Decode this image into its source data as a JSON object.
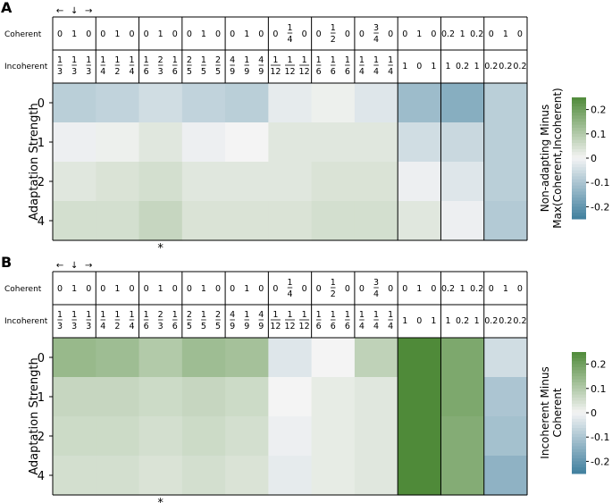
{
  "colors": {
    "negative": "#3f7f9e",
    "neutral": "#f4f4f4",
    "positive": "#4f8a39",
    "grid": "#000000"
  },
  "panels": [
    {
      "letter": "A",
      "arrows": [
        "←",
        "↓",
        "→"
      ],
      "star": "*",
      "row_labels": {
        "coherent": "Coherent",
        "incoherent": "Incoherent"
      },
      "conditions": [
        {
          "coherent": [
            "0",
            "1",
            "0"
          ],
          "incoherent": [
            "1/3",
            "1/3",
            "1/3"
          ]
        },
        {
          "coherent": [
            "0",
            "1",
            "0"
          ],
          "incoherent": [
            "1/4",
            "1/2",
            "1/4"
          ]
        },
        {
          "coherent": [
            "0",
            "1",
            "0"
          ],
          "incoherent": [
            "1/6",
            "2/3",
            "1/6"
          ]
        },
        {
          "coherent": [
            "0",
            "1",
            "0"
          ],
          "incoherent": [
            "2/5",
            "1/5",
            "2/5"
          ]
        },
        {
          "coherent": [
            "0",
            "1",
            "0"
          ],
          "incoherent": [
            "4/9",
            "1/9",
            "4/9"
          ]
        },
        {
          "coherent": [
            "0",
            "1/4",
            "0"
          ],
          "incoherent": [
            "1/12",
            "1/12",
            "1/12"
          ]
        },
        {
          "coherent": [
            "0",
            "1/2",
            "0"
          ],
          "incoherent": [
            "1/6",
            "1/6",
            "1/6"
          ]
        },
        {
          "coherent": [
            "0",
            "3/4",
            "0"
          ],
          "incoherent": [
            "1/4",
            "1/4",
            "1/4"
          ]
        },
        {
          "coherent": [
            "0",
            "1",
            "0"
          ],
          "incoherent": [
            "1",
            "0",
            "1"
          ]
        },
        {
          "coherent": [
            "0.2",
            "1",
            "0.2"
          ],
          "incoherent": [
            "1",
            "0.2",
            "1"
          ]
        },
        {
          "coherent": [
            "0",
            "1",
            "0"
          ],
          "incoherent": [
            "0.2",
            "0.2",
            "0.2"
          ]
        }
      ],
      "colorbar": {
        "label_lines": [
          "Non-adapting Minus",
          "Max(Coherent,Incoherent)"
        ],
        "ticks": [
          "0.2",
          "0.1",
          "0",
          "-0.1",
          "-0.2"
        ]
      }
    },
    {
      "letter": "B",
      "arrows": [
        "←",
        "↓",
        "→"
      ],
      "star": "*",
      "row_labels": {
        "coherent": "Coherent",
        "incoherent": "Incoherent"
      },
      "conditions": [
        {
          "coherent": [
            "0",
            "1",
            "0"
          ],
          "incoherent": [
            "1/3",
            "1/3",
            "1/3"
          ]
        },
        {
          "coherent": [
            "0",
            "1",
            "0"
          ],
          "incoherent": [
            "1/4",
            "1/2",
            "1/4"
          ]
        },
        {
          "coherent": [
            "0",
            "1",
            "0"
          ],
          "incoherent": [
            "1/6",
            "2/3",
            "1/6"
          ]
        },
        {
          "coherent": [
            "0",
            "1",
            "0"
          ],
          "incoherent": [
            "2/5",
            "1/5",
            "2/5"
          ]
        },
        {
          "coherent": [
            "0",
            "1",
            "0"
          ],
          "incoherent": [
            "4/9",
            "1/9",
            "4/9"
          ]
        },
        {
          "coherent": [
            "0",
            "1/4",
            "0"
          ],
          "incoherent": [
            "1/12",
            "1/12",
            "1/12"
          ]
        },
        {
          "coherent": [
            "0",
            "1/2",
            "0"
          ],
          "incoherent": [
            "1/6",
            "1/6",
            "1/6"
          ]
        },
        {
          "coherent": [
            "0",
            "3/4",
            "0"
          ],
          "incoherent": [
            "1/4",
            "1/4",
            "1/4"
          ]
        },
        {
          "coherent": [
            "0",
            "1",
            "0"
          ],
          "incoherent": [
            "1",
            "0",
            "1"
          ]
        },
        {
          "coherent": [
            "0.2",
            "1",
            "0.2"
          ],
          "incoherent": [
            "1",
            "0.2",
            "1"
          ]
        },
        {
          "coherent": [
            "0",
            "1",
            "0"
          ],
          "incoherent": [
            "0.2",
            "0.2",
            "0.2"
          ]
        }
      ],
      "colorbar": {
        "label_lines": [
          "Incoherent Minus",
          "Coherent"
        ],
        "ticks": [
          "0.2",
          "0.1",
          "0",
          "-0.1",
          "-0.2"
        ]
      }
    }
  ],
  "chart_data": [
    {
      "type": "heatmap",
      "title": "A",
      "ylabel": "Adaptation Strength",
      "yticks": [
        "0",
        "1",
        "2",
        "4"
      ],
      "colorbar_label": "Non-adapting Minus Max(Coherent,Incoherent)",
      "vlim": [
        -0.25,
        0.25
      ],
      "values": [
        [
          -0.08,
          -0.07,
          -0.05,
          -0.07,
          -0.08,
          -0.02,
          0.01,
          -0.03,
          -0.12,
          -0.15,
          -0.08
        ],
        [
          -0.01,
          0.01,
          0.03,
          -0.01,
          0.0,
          0.03,
          0.03,
          0.03,
          -0.05,
          -0.06,
          -0.08
        ],
        [
          0.03,
          0.04,
          0.05,
          0.03,
          0.03,
          0.03,
          0.04,
          0.04,
          -0.01,
          -0.03,
          -0.08
        ],
        [
          0.05,
          0.05,
          0.07,
          0.04,
          0.04,
          0.04,
          0.05,
          0.05,
          0.03,
          -0.01,
          -0.09
        ]
      ]
    },
    {
      "type": "heatmap",
      "title": "B",
      "ylabel": "Adaptation Strength",
      "yticks": [
        "0",
        "1",
        "2",
        "4"
      ],
      "colorbar_label": "Incoherent Minus Coherent",
      "vlim": [
        -0.25,
        0.25
      ],
      "values": [
        [
          0.14,
          0.13,
          0.1,
          0.13,
          0.12,
          -0.03,
          0.0,
          0.08,
          0.25,
          0.18,
          -0.05
        ],
        [
          0.07,
          0.07,
          0.06,
          0.07,
          0.06,
          0.0,
          0.02,
          0.03,
          0.25,
          0.18,
          -0.1
        ],
        [
          0.06,
          0.06,
          0.05,
          0.06,
          0.05,
          -0.01,
          0.02,
          0.03,
          0.25,
          0.17,
          -0.11
        ],
        [
          0.05,
          0.05,
          0.04,
          0.05,
          0.04,
          -0.02,
          0.02,
          0.03,
          0.25,
          0.17,
          -0.14
        ]
      ]
    }
  ]
}
